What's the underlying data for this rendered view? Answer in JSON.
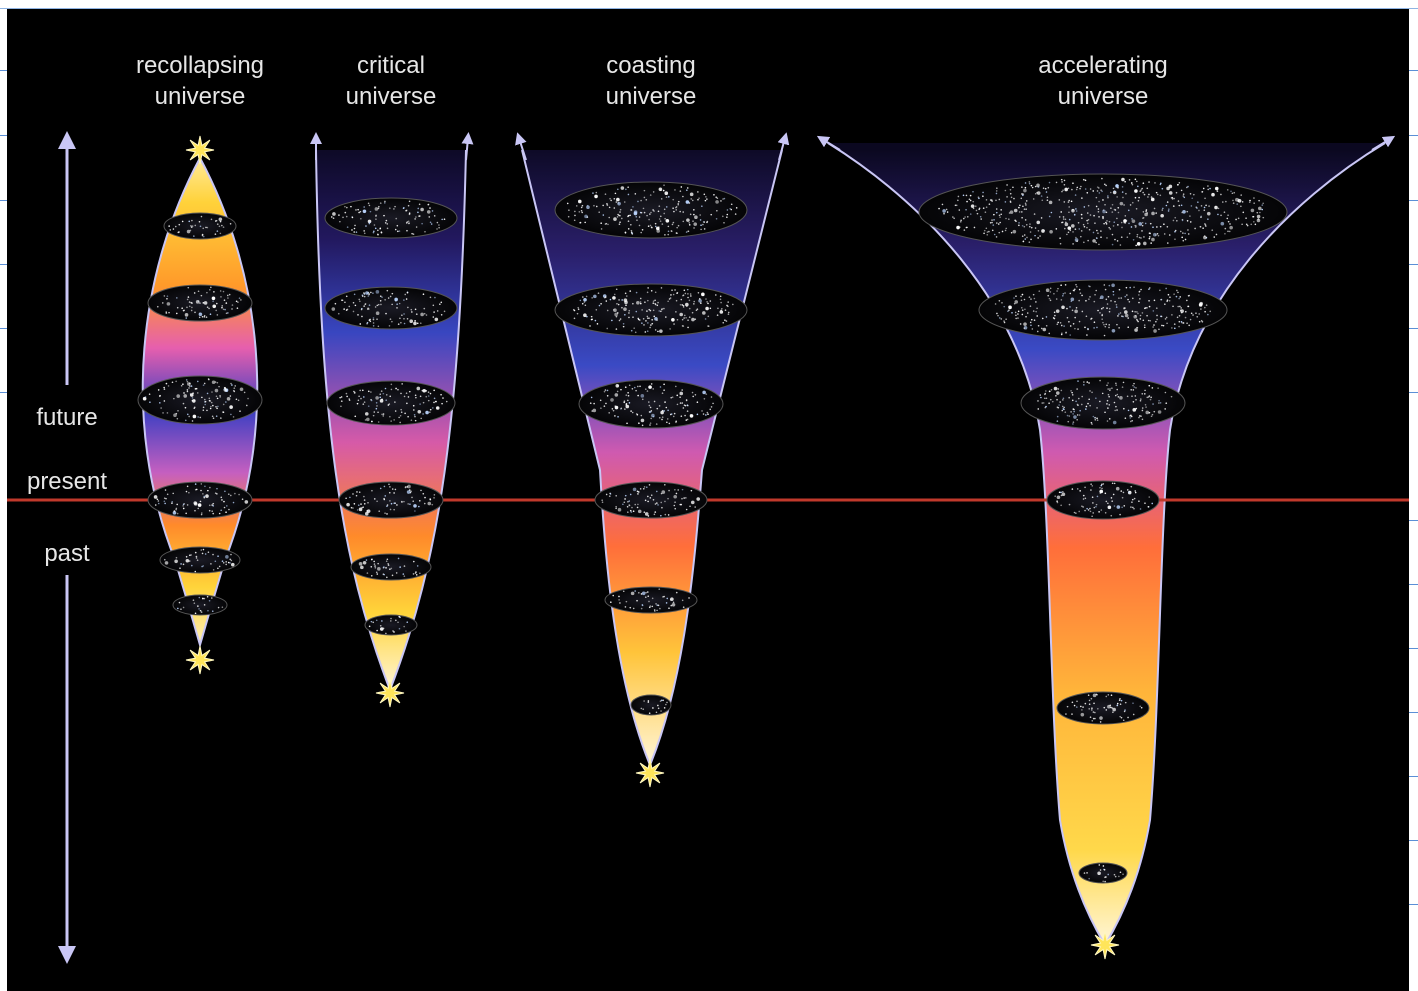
{
  "models": [
    {
      "key": "recollapsing",
      "line1": "recollapsing",
      "line2": "universe"
    },
    {
      "key": "critical",
      "line1": "critical",
      "line2": "universe"
    },
    {
      "key": "coasting",
      "line1": "coasting",
      "line2": "universe"
    },
    {
      "key": "accelerating",
      "line1": "accelerating",
      "line2": "universe"
    }
  ],
  "timeline": {
    "future": "future",
    "present": "present",
    "past": "past"
  },
  "colors": {
    "background": "#000000",
    "present_line": "#c0392b",
    "outline": "#b9b6f0",
    "gradient": [
      "#fff6c8",
      "#ffd43a",
      "#ff8a2a",
      "#e85fa8",
      "#3b3fbf",
      "#1b1440"
    ]
  }
}
